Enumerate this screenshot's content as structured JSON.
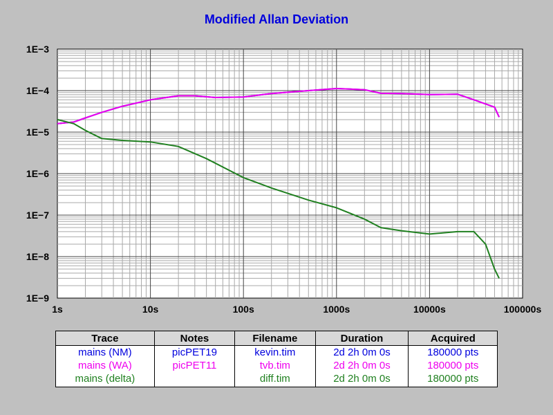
{
  "chart_data": {
    "type": "line",
    "title": "Modified Allan Deviation",
    "xscale": "log",
    "yscale": "log",
    "xlim": [
      1,
      100000
    ],
    "ylim": [
      1e-09,
      0.001
    ],
    "x_ticks": [
      "1s",
      "10s",
      "100s",
      "1000s",
      "10000s",
      "100000s"
    ],
    "y_ticks": [
      "1E−9",
      "1E−8",
      "1E−7",
      "1E−6",
      "1E−5",
      "1E−4",
      "1E−3"
    ],
    "grid": true,
    "series": [
      {
        "name": "mains (NM)",
        "color": "#0000dd",
        "points": [
          [
            1,
            1.6e-05
          ],
          [
            1.5,
            1.75e-05
          ],
          [
            2,
            2.2e-05
          ],
          [
            3,
            3e-05
          ],
          [
            5,
            4.2e-05
          ],
          [
            10,
            6e-05
          ],
          [
            20,
            7.5e-05
          ],
          [
            30,
            7.5e-05
          ],
          [
            50,
            6.8e-05
          ],
          [
            100,
            7e-05
          ],
          [
            200,
            8.5e-05
          ],
          [
            500,
            0.0001
          ],
          [
            1000,
            0.000112
          ],
          [
            2000,
            0.000105
          ],
          [
            3000,
            8.6e-05
          ],
          [
            5000,
            8.5e-05
          ],
          [
            10000,
            8e-05
          ],
          [
            20000,
            8.2e-05
          ],
          [
            30000,
            6e-05
          ],
          [
            50000,
            4e-05
          ],
          [
            56000,
            2.3e-05
          ]
        ]
      },
      {
        "name": "mains (WA)",
        "color": "#ee00ee",
        "points": [
          [
            1,
            1.6e-05
          ],
          [
            1.5,
            1.75e-05
          ],
          [
            2,
            2.2e-05
          ],
          [
            3,
            3e-05
          ],
          [
            5,
            4.2e-05
          ],
          [
            10,
            6e-05
          ],
          [
            20,
            7.5e-05
          ],
          [
            30,
            7.5e-05
          ],
          [
            50,
            6.8e-05
          ],
          [
            100,
            7e-05
          ],
          [
            200,
            8.5e-05
          ],
          [
            500,
            0.0001
          ],
          [
            1000,
            0.000112
          ],
          [
            2000,
            0.000105
          ],
          [
            3000,
            8.6e-05
          ],
          [
            5000,
            8.5e-05
          ],
          [
            10000,
            8e-05
          ],
          [
            20000,
            8.2e-05
          ],
          [
            30000,
            6e-05
          ],
          [
            50000,
            4e-05
          ],
          [
            56000,
            2.3e-05
          ]
        ]
      },
      {
        "name": "mains (delta)",
        "color": "#208020",
        "points": [
          [
            1,
            2e-05
          ],
          [
            1.5,
            1.6e-05
          ],
          [
            2,
            1.1e-05
          ],
          [
            3,
            7e-06
          ],
          [
            5,
            6.3e-06
          ],
          [
            10,
            5.8e-06
          ],
          [
            20,
            4.5e-06
          ],
          [
            40,
            2.3e-06
          ],
          [
            100,
            8e-07
          ],
          [
            200,
            4.5e-07
          ],
          [
            500,
            2.3e-07
          ],
          [
            1000,
            1.5e-07
          ],
          [
            2000,
            8e-08
          ],
          [
            3000,
            5e-08
          ],
          [
            5000,
            4.2e-08
          ],
          [
            10000,
            3.5e-08
          ],
          [
            20000,
            4e-08
          ],
          [
            30000,
            4e-08
          ],
          [
            40000,
            2e-08
          ],
          [
            50000,
            5e-09
          ],
          [
            56000,
            3e-09
          ]
        ]
      }
    ]
  },
  "legend": {
    "headers": [
      "Trace",
      "Notes",
      "Filename",
      "Duration",
      "Acquired"
    ],
    "rows": [
      {
        "color": "#0000dd",
        "cells": [
          "mains (NM)",
          "picPET19",
          "kevin.tim",
          "2d 2h 0m 0s",
          "180000 pts"
        ]
      },
      {
        "color": "#ee00ee",
        "cells": [
          "mains (WA)",
          "picPET11",
          "tvb.tim",
          "2d 2h 0m 0s",
          "180000 pts"
        ]
      },
      {
        "color": "#208020",
        "cells": [
          "mains (delta)",
          "",
          "diff.tim",
          "2d 2h 0m 0s",
          "180000 pts"
        ]
      }
    ]
  }
}
